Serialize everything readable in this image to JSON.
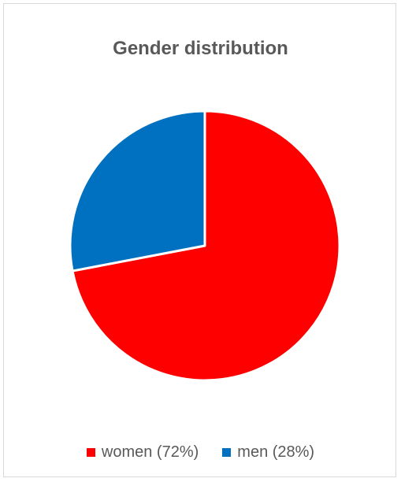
{
  "chart_data": {
    "type": "pie",
    "title": "Gender distribution",
    "slices": [
      {
        "label": "women (72%)",
        "value": 72,
        "color": "#ff0000"
      },
      {
        "label": "men (28%)",
        "value": 28,
        "color": "#0070c0"
      }
    ],
    "start": "top, clockwise",
    "legend_position": "bottom"
  }
}
